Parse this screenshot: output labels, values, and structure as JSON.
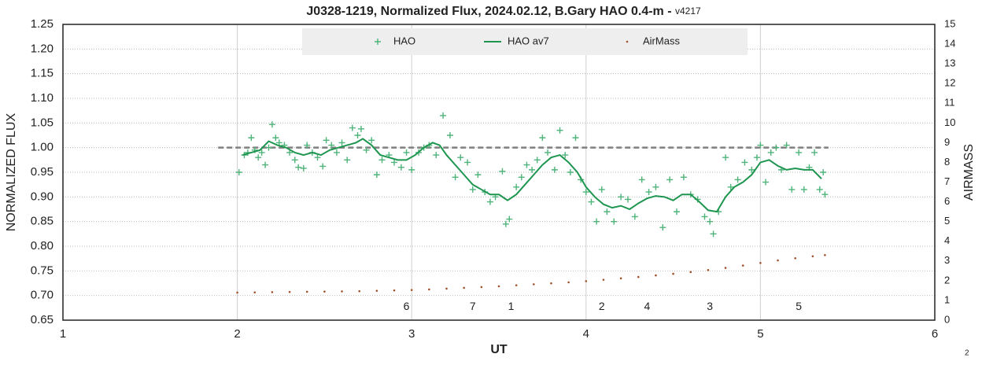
{
  "chart_data": {
    "type": "scatter",
    "title": "J0328-1219, Normalized Flux, 2024.02.12, B.Gary HAO 0.4-m - ",
    "version": "v4217",
    "x_label": "UT",
    "y_label": "NORMALIZED FLUX",
    "y2_label": "AIRMASS",
    "corner_note": "2",
    "xlim": [
      1,
      6
    ],
    "xticks": [
      1,
      2,
      3,
      4,
      5,
      6
    ],
    "ylim": [
      0.65,
      1.25
    ],
    "yticks": [
      0.65,
      {
        "value": 0.7,
        "label": "0.70"
      },
      0.75,
      {
        "value": 0.8,
        "label": "0.80"
      },
      0.85,
      {
        "value": 0.9,
        "label": "0.90"
      },
      0.95,
      {
        "value": 1.0,
        "label": "1.00"
      },
      1.05,
      {
        "value": 1.1,
        "label": "1.10"
      },
      1.15,
      {
        "value": 1.2,
        "label": "1.20"
      },
      1.25
    ],
    "y2lim": [
      0,
      15
    ],
    "y2ticks": [
      0,
      1,
      2,
      3,
      4,
      5,
      6,
      7,
      8,
      9,
      10,
      11,
      12,
      13,
      14,
      15
    ],
    "grid": true,
    "legend": "top",
    "reference_line": {
      "y": 1.0,
      "x": [
        1.89,
        5.39
      ],
      "color": "#7f7f7f"
    },
    "series": [
      {
        "name": "HAO",
        "marker": "plus",
        "color": "#4fb37a",
        "x": [
          2.01,
          2.04,
          2.06,
          2.08,
          2.1,
          2.12,
          2.14,
          2.16,
          2.18,
          2.2,
          2.22,
          2.24,
          2.27,
          2.3,
          2.33,
          2.35,
          2.38,
          2.4,
          2.43,
          2.46,
          2.49,
          2.51,
          2.54,
          2.57,
          2.6,
          2.63,
          2.66,
          2.69,
          2.71,
          2.74,
          2.77,
          2.8,
          2.83,
          2.87,
          2.9,
          2.94,
          2.97,
          3.0,
          3.04,
          3.07,
          3.1,
          3.14,
          3.18,
          3.22,
          3.25,
          3.28,
          3.32,
          3.35,
          3.38,
          3.42,
          3.45,
          3.48,
          3.52,
          3.54,
          3.56,
          3.6,
          3.63,
          3.66,
          3.69,
          3.72,
          3.75,
          3.78,
          3.82,
          3.85,
          3.88,
          3.91,
          3.94,
          3.97,
          4.0,
          4.03,
          4.06,
          4.09,
          4.12,
          4.16,
          4.2,
          4.24,
          4.28,
          4.32,
          4.36,
          4.4,
          4.44,
          4.48,
          4.52,
          4.56,
          4.6,
          4.64,
          4.68,
          4.71,
          4.73,
          4.76,
          4.8,
          4.83,
          4.87,
          4.91,
          4.95,
          4.98,
          5.0,
          5.03,
          5.06,
          5.09,
          5.12,
          5.15,
          5.18,
          5.22,
          5.25,
          5.28,
          5.31,
          5.34,
          5.36,
          5.37
        ],
        "values": [
          0.95,
          0.985,
          0.99,
          1.02,
          0.995,
          0.98,
          0.99,
          0.965,
          1.0,
          1.047,
          1.02,
          1.01,
          1.005,
          0.99,
          0.975,
          0.96,
          0.958,
          1.005,
          0.99,
          0.98,
          0.962,
          1.015,
          1.005,
          0.99,
          1.01,
          0.975,
          1.04,
          1.025,
          1.038,
          0.995,
          1.015,
          0.945,
          0.975,
          0.985,
          0.97,
          0.96,
          0.99,
          0.955,
          0.99,
          1.0,
          1.005,
          0.985,
          1.065,
          1.025,
          0.94,
          0.98,
          0.97,
          0.915,
          0.945,
          0.91,
          0.89,
          0.9,
          0.952,
          0.845,
          0.855,
          0.92,
          0.94,
          0.965,
          0.955,
          0.975,
          1.02,
          0.99,
          0.955,
          1.035,
          0.985,
          0.95,
          1.02,
          0.935,
          0.91,
          0.89,
          0.85,
          0.915,
          0.87,
          0.85,
          0.9,
          0.895,
          0.86,
          0.935,
          0.91,
          0.92,
          0.838,
          0.935,
          0.87,
          0.94,
          0.905,
          0.895,
          0.86,
          0.85,
          0.825,
          0.87,
          0.98,
          0.92,
          0.935,
          0.97,
          0.955,
          0.98,
          1.005,
          0.93,
          0.99,
          1.0,
          0.955,
          1.005,
          0.915,
          0.99,
          0.915,
          0.96,
          0.99,
          0.915,
          0.95,
          0.905
        ]
      },
      {
        "name": "HAO av7",
        "marker": "line",
        "color": "#1e9650",
        "x": [
          2.03,
          2.08,
          2.13,
          2.18,
          2.23,
          2.28,
          2.33,
          2.38,
          2.43,
          2.48,
          2.53,
          2.58,
          2.63,
          2.68,
          2.72,
          2.77,
          2.82,
          2.87,
          2.92,
          2.97,
          3.02,
          3.07,
          3.12,
          3.16,
          3.2,
          3.25,
          3.3,
          3.35,
          3.4,
          3.45,
          3.5,
          3.55,
          3.6,
          3.65,
          3.7,
          3.75,
          3.8,
          3.85,
          3.9,
          3.95,
          4.0,
          4.05,
          4.1,
          4.15,
          4.2,
          4.25,
          4.3,
          4.35,
          4.4,
          4.45,
          4.5,
          4.55,
          4.6,
          4.65,
          4.7,
          4.75,
          4.8,
          4.85,
          4.9,
          4.95,
          5.0,
          5.05,
          5.1,
          5.15,
          5.2,
          5.25,
          5.3,
          5.35
        ],
        "values": [
          0.985,
          0.99,
          0.995,
          1.013,
          1.005,
          1.0,
          0.99,
          0.985,
          0.99,
          0.985,
          0.995,
          1.0,
          1.005,
          1.01,
          1.018,
          1.005,
          0.985,
          0.98,
          0.975,
          0.975,
          0.985,
          1.0,
          1.01,
          1.005,
          0.985,
          0.965,
          0.945,
          0.925,
          0.915,
          0.905,
          0.905,
          0.893,
          0.905,
          0.925,
          0.945,
          0.965,
          0.98,
          0.985,
          0.97,
          0.95,
          0.92,
          0.9,
          0.885,
          0.878,
          0.882,
          0.875,
          0.887,
          0.897,
          0.902,
          0.9,
          0.893,
          0.905,
          0.905,
          0.89,
          0.873,
          0.87,
          0.9,
          0.92,
          0.93,
          0.945,
          0.97,
          0.975,
          0.963,
          0.955,
          0.958,
          0.955,
          0.955,
          0.937
        ]
      },
      {
        "name": "AirMass",
        "marker": "dot",
        "color": "#a0522d",
        "axis": "y2",
        "x": [
          2.0,
          2.1,
          2.2,
          2.3,
          2.4,
          2.5,
          2.6,
          2.7,
          2.8,
          2.9,
          3.0,
          3.1,
          3.2,
          3.3,
          3.4,
          3.5,
          3.6,
          3.7,
          3.8,
          3.9,
          4.0,
          4.1,
          4.2,
          4.3,
          4.4,
          4.5,
          4.6,
          4.7,
          4.8,
          4.9,
          5.0,
          5.1,
          5.2,
          5.3,
          5.37
        ],
        "values": [
          1.4,
          1.41,
          1.42,
          1.43,
          1.44,
          1.45,
          1.46,
          1.47,
          1.49,
          1.51,
          1.53,
          1.56,
          1.6,
          1.64,
          1.68,
          1.72,
          1.77,
          1.82,
          1.87,
          1.92,
          1.98,
          2.05,
          2.12,
          2.19,
          2.27,
          2.35,
          2.44,
          2.54,
          2.65,
          2.77,
          2.9,
          3.03,
          3.14,
          3.24,
          3.3
        ]
      }
    ],
    "annotations": [
      {
        "text": "6",
        "x": 2.97,
        "y": 0.677
      },
      {
        "text": "7",
        "x": 3.35,
        "y": 0.677
      },
      {
        "text": "1",
        "x": 3.57,
        "y": 0.677
      },
      {
        "text": "2",
        "x": 4.09,
        "y": 0.677
      },
      {
        "text": "4",
        "x": 4.35,
        "y": 0.677
      },
      {
        "text": "3",
        "x": 4.71,
        "y": 0.677
      },
      {
        "text": "5",
        "x": 5.22,
        "y": 0.677
      }
    ]
  }
}
